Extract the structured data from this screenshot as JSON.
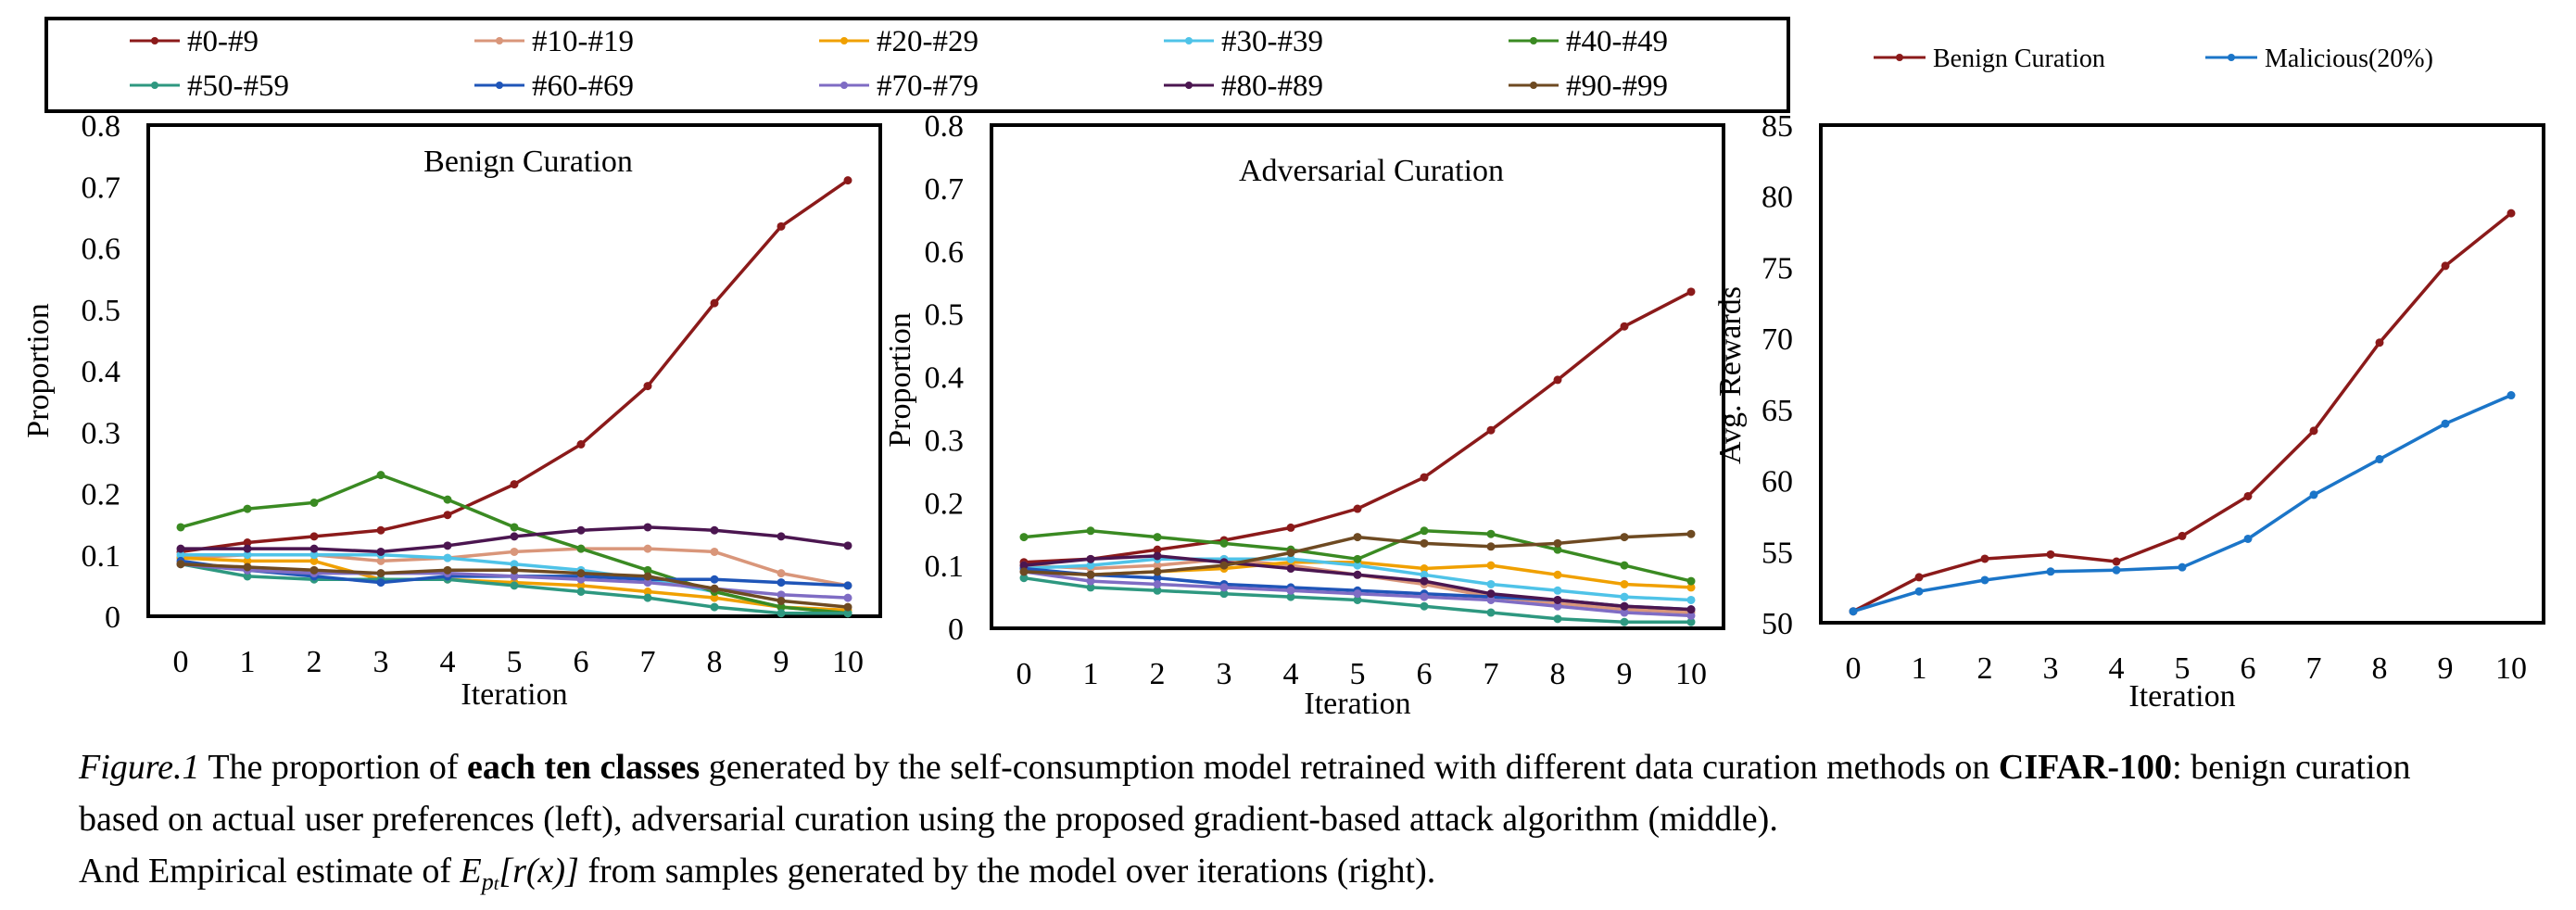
{
  "palette": [
    "#8B1A1A",
    "#D9967A",
    "#F0A000",
    "#4FC3E8",
    "#3A8A22",
    "#2E9880",
    "#1F55B8",
    "#7F6CC4",
    "#4B1650",
    "#6E4A22"
  ],
  "legend_left": [
    "#0-#9",
    "#10-#19",
    "#20-#29",
    "#30-#39",
    "#40-#49",
    "#50-#59",
    "#60-#69",
    "#70-#79",
    "#80-#89",
    "#90-#99"
  ],
  "legend_right": [
    {
      "label": "Benign Curation",
      "color": "#8B1A1A"
    },
    {
      "label": "Malicious(20%)",
      "color": "#1B75C8"
    }
  ],
  "chart_data": [
    {
      "type": "line",
      "title": "Benign Curation",
      "xlabel": "Iteration",
      "ylabel": "Proportion",
      "x": [
        0,
        1,
        2,
        3,
        4,
        5,
        6,
        7,
        8,
        9,
        10
      ],
      "ylim": [
        0,
        0.8
      ],
      "yticks": [
        "0",
        "0.1",
        "0.2",
        "0.3",
        "0.4",
        "0.5",
        "0.6",
        "0.7",
        "0.8"
      ],
      "series": [
        {
          "name": "#0-#9",
          "values": [
            0.105,
            0.12,
            0.13,
            0.14,
            0.165,
            0.215,
            0.28,
            0.375,
            0.51,
            0.635,
            0.71
          ]
        },
        {
          "name": "#10-#19",
          "values": [
            0.095,
            0.1,
            0.1,
            0.09,
            0.095,
            0.105,
            0.11,
            0.11,
            0.105,
            0.07,
            0.05
          ]
        },
        {
          "name": "#20-#29",
          "values": [
            0.095,
            0.09,
            0.09,
            0.06,
            0.06,
            0.055,
            0.05,
            0.04,
            0.03,
            0.015,
            0.01
          ]
        },
        {
          "name": "#30-#39",
          "values": [
            0.1,
            0.1,
            0.1,
            0.1,
            0.095,
            0.085,
            0.075,
            0.06,
            0.04,
            0.015,
            0.005
          ]
        },
        {
          "name": "#40-#49",
          "values": [
            0.145,
            0.175,
            0.185,
            0.23,
            0.19,
            0.145,
            0.11,
            0.075,
            0.04,
            0.015,
            0.005
          ]
        },
        {
          "name": "#50-#59",
          "values": [
            0.085,
            0.065,
            0.06,
            0.06,
            0.06,
            0.05,
            0.04,
            0.03,
            0.015,
            0.005,
            0.005
          ]
        },
        {
          "name": "#60-#69",
          "values": [
            0.09,
            0.075,
            0.065,
            0.055,
            0.065,
            0.065,
            0.065,
            0.06,
            0.06,
            0.055,
            0.05
          ]
        },
        {
          "name": "#70-#79",
          "values": [
            0.085,
            0.075,
            0.07,
            0.07,
            0.07,
            0.065,
            0.06,
            0.055,
            0.045,
            0.035,
            0.03
          ]
        },
        {
          "name": "#80-#89",
          "values": [
            0.11,
            0.11,
            0.11,
            0.105,
            0.115,
            0.13,
            0.14,
            0.145,
            0.14,
            0.13,
            0.115
          ]
        },
        {
          "name": "#90-#99",
          "values": [
            0.085,
            0.08,
            0.075,
            0.07,
            0.075,
            0.075,
            0.07,
            0.065,
            0.045,
            0.025,
            0.015
          ]
        }
      ]
    },
    {
      "type": "line",
      "title": "Adversarial Curation",
      "xlabel": "Iteration",
      "ylabel": "Proportion",
      "x": [
        0,
        1,
        2,
        3,
        4,
        5,
        6,
        7,
        8,
        9,
        10
      ],
      "ylim": [
        0,
        0.8
      ],
      "yticks": [
        "0",
        "0.1",
        "0.2",
        "0.3",
        "0.4",
        "0.5",
        "0.6",
        "0.7",
        "0.8"
      ],
      "series": [
        {
          "name": "#0-#9",
          "values": [
            0.105,
            0.11,
            0.125,
            0.14,
            0.16,
            0.19,
            0.24,
            0.315,
            0.395,
            0.48,
            0.535
          ]
        },
        {
          "name": "#10-#19",
          "values": [
            0.1,
            0.095,
            0.1,
            0.11,
            0.1,
            0.085,
            0.07,
            0.05,
            0.04,
            0.03,
            0.025
          ]
        },
        {
          "name": "#20-#29",
          "values": [
            0.09,
            0.085,
            0.09,
            0.095,
            0.105,
            0.105,
            0.095,
            0.1,
            0.085,
            0.07,
            0.065
          ]
        },
        {
          "name": "#30-#39",
          "values": [
            0.095,
            0.1,
            0.11,
            0.11,
            0.11,
            0.1,
            0.085,
            0.07,
            0.06,
            0.05,
            0.045
          ]
        },
        {
          "name": "#40-#49",
          "values": [
            0.145,
            0.155,
            0.145,
            0.135,
            0.125,
            0.11,
            0.155,
            0.15,
            0.125,
            0.1,
            0.075
          ]
        },
        {
          "name": "#50-#59",
          "values": [
            0.08,
            0.065,
            0.06,
            0.055,
            0.05,
            0.045,
            0.035,
            0.025,
            0.015,
            0.01,
            0.01
          ]
        },
        {
          "name": "#60-#69",
          "values": [
            0.095,
            0.085,
            0.08,
            0.07,
            0.065,
            0.06,
            0.055,
            0.05,
            0.045,
            0.035,
            0.03
          ]
        },
        {
          "name": "#70-#79",
          "values": [
            0.09,
            0.075,
            0.07,
            0.065,
            0.06,
            0.055,
            0.05,
            0.045,
            0.035,
            0.025,
            0.02
          ]
        },
        {
          "name": "#80-#89",
          "values": [
            0.1,
            0.11,
            0.115,
            0.105,
            0.095,
            0.085,
            0.075,
            0.055,
            0.045,
            0.035,
            0.03
          ]
        },
        {
          "name": "#90-#99",
          "values": [
            0.09,
            0.085,
            0.09,
            0.1,
            0.12,
            0.145,
            0.135,
            0.13,
            0.135,
            0.145,
            0.15
          ]
        }
      ]
    },
    {
      "type": "line",
      "title": "",
      "xlabel": "Iteration",
      "ylabel": "Avg. Rewards",
      "x": [
        0,
        1,
        2,
        3,
        4,
        5,
        6,
        7,
        8,
        9,
        10
      ],
      "ylim": [
        50,
        85
      ],
      "yticks": [
        "50",
        "55",
        "60",
        "65",
        "70",
        "75",
        "80",
        "85"
      ],
      "series": [
        {
          "name": "Benign Curation",
          "values": [
            50.8,
            53.2,
            54.5,
            54.8,
            54.3,
            56.1,
            58.9,
            63.5,
            69.7,
            75.1,
            78.8
          ]
        },
        {
          "name": "Malicious(20%)",
          "values": [
            50.8,
            52.2,
            53.0,
            53.6,
            53.7,
            53.9,
            55.9,
            59.0,
            61.5,
            64.0,
            66.0
          ]
        }
      ]
    }
  ],
  "caption": {
    "fig_label": "Figure.1",
    "part1": " The proportion of ",
    "bold1": "each ten classes",
    "part2": " generated by the self-consumption model retrained with different data curation methods on ",
    "bold2": "CIFAR-100",
    "part3": ": benign curation based on actual user preferences (left), adversarial curation using the proposed gradient-based attack algorithm (middle).",
    "part4": "And Empirical estimate of ",
    "math_E": "E",
    "math_sub_p": "p",
    "math_sub_t": "t",
    "math_arg": "[r(x)]",
    "part5": " from samples generated by the model over iterations (right)."
  }
}
